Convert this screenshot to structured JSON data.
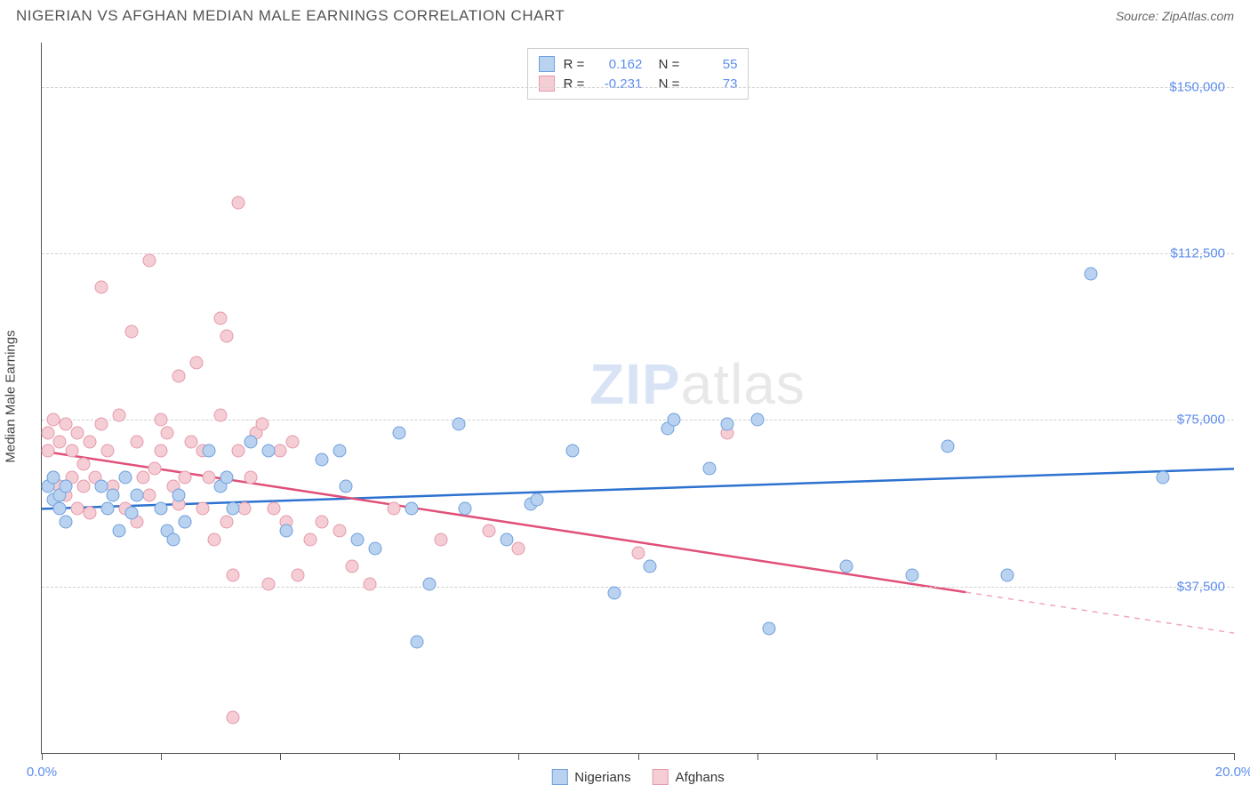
{
  "header": {
    "title": "NIGERIAN VS AFGHAN MEDIAN MALE EARNINGS CORRELATION CHART",
    "source": "Source: ZipAtlas.com"
  },
  "chart": {
    "type": "scatter-with-trend",
    "y_axis": {
      "title": "Median Male Earnings",
      "min": 0,
      "max": 160000,
      "ticks": [
        37500,
        75000,
        112500,
        150000
      ],
      "tick_labels": [
        "$37,500",
        "$75,000",
        "$112,500",
        "$150,000"
      ],
      "label_color": "#5b8def",
      "label_fontsize": 15
    },
    "x_axis": {
      "min": 0,
      "max": 20,
      "ticks": [
        0,
        2,
        4,
        6,
        8,
        10,
        12,
        14,
        16,
        18,
        20
      ],
      "end_labels": {
        "left": "0.0%",
        "right": "20.0%"
      },
      "label_color": "#5b8def",
      "label_fontsize": 15
    },
    "grid_color": "#d0d0d0",
    "background_color": "#ffffff",
    "series": [
      {
        "name": "Nigerians",
        "fill_color": "#b9d2f0",
        "stroke_color": "#6fa0de",
        "line_color": "#2d72d0",
        "r_value": "0.162",
        "n_value": "55",
        "trend": {
          "y_at_xmin": 55000,
          "y_at_xmax": 64000,
          "solid_until_x": 20
        },
        "points": [
          [
            0.1,
            60000
          ],
          [
            0.2,
            57000
          ],
          [
            0.2,
            62000
          ],
          [
            0.3,
            55000
          ],
          [
            0.3,
            58000
          ],
          [
            0.4,
            60000
          ],
          [
            0.4,
            52000
          ],
          [
            1.0,
            60000
          ],
          [
            1.1,
            55000
          ],
          [
            1.2,
            58000
          ],
          [
            1.3,
            50000
          ],
          [
            1.4,
            62000
          ],
          [
            1.5,
            54000
          ],
          [
            1.6,
            58000
          ],
          [
            2.0,
            55000
          ],
          [
            2.1,
            50000
          ],
          [
            2.2,
            48000
          ],
          [
            2.3,
            58000
          ],
          [
            2.4,
            52000
          ],
          [
            2.8,
            68000
          ],
          [
            3.0,
            60000
          ],
          [
            3.1,
            62000
          ],
          [
            3.2,
            55000
          ],
          [
            3.5,
            70000
          ],
          [
            3.8,
            68000
          ],
          [
            4.1,
            50000
          ],
          [
            4.7,
            66000
          ],
          [
            5.0,
            68000
          ],
          [
            5.1,
            60000
          ],
          [
            5.3,
            48000
          ],
          [
            5.6,
            46000
          ],
          [
            6.0,
            72000
          ],
          [
            6.2,
            55000
          ],
          [
            6.3,
            25000
          ],
          [
            6.5,
            38000
          ],
          [
            7.0,
            74000
          ],
          [
            7.1,
            55000
          ],
          [
            7.8,
            48000
          ],
          [
            8.2,
            56000
          ],
          [
            8.3,
            57000
          ],
          [
            8.9,
            68000
          ],
          [
            9.6,
            36000
          ],
          [
            10.2,
            42000
          ],
          [
            10.5,
            73000
          ],
          [
            10.6,
            75000
          ],
          [
            11.2,
            64000
          ],
          [
            11.5,
            74000
          ],
          [
            12.0,
            75000
          ],
          [
            12.2,
            28000
          ],
          [
            13.5,
            42000
          ],
          [
            14.6,
            40000
          ],
          [
            15.2,
            69000
          ],
          [
            16.2,
            40000
          ],
          [
            17.6,
            108000
          ],
          [
            18.8,
            62000
          ]
        ]
      },
      {
        "name": "Afghans",
        "fill_color": "#f5cdd5",
        "stroke_color": "#e59aab",
        "line_color": "#e15078",
        "r_value": "-0.231",
        "n_value": "73",
        "trend": {
          "y_at_xmin": 68000,
          "y_at_xmax": 27000,
          "solid_until_x": 15.5
        },
        "points": [
          [
            0.1,
            72000
          ],
          [
            0.1,
            68000
          ],
          [
            0.2,
            62000
          ],
          [
            0.2,
            75000
          ],
          [
            0.3,
            70000
          ],
          [
            0.3,
            60000
          ],
          [
            0.4,
            74000
          ],
          [
            0.4,
            58000
          ],
          [
            0.5,
            62000
          ],
          [
            0.5,
            68000
          ],
          [
            0.6,
            55000
          ],
          [
            0.6,
            72000
          ],
          [
            0.7,
            60000
          ],
          [
            0.7,
            65000
          ],
          [
            0.8,
            70000
          ],
          [
            0.8,
            54000
          ],
          [
            0.9,
            62000
          ],
          [
            1.0,
            74000
          ],
          [
            1.0,
            105000
          ],
          [
            1.1,
            68000
          ],
          [
            1.2,
            60000
          ],
          [
            1.3,
            76000
          ],
          [
            1.4,
            55000
          ],
          [
            1.5,
            95000
          ],
          [
            1.6,
            70000
          ],
          [
            1.6,
            52000
          ],
          [
            1.7,
            62000
          ],
          [
            1.8,
            111000
          ],
          [
            1.8,
            58000
          ],
          [
            1.9,
            64000
          ],
          [
            2.0,
            75000
          ],
          [
            2.0,
            68000
          ],
          [
            2.1,
            72000
          ],
          [
            2.2,
            60000
          ],
          [
            2.3,
            56000
          ],
          [
            2.3,
            85000
          ],
          [
            2.4,
            62000
          ],
          [
            2.4,
            52000
          ],
          [
            2.5,
            70000
          ],
          [
            2.6,
            88000
          ],
          [
            2.7,
            55000
          ],
          [
            2.7,
            68000
          ],
          [
            2.8,
            62000
          ],
          [
            2.9,
            48000
          ],
          [
            3.0,
            98000
          ],
          [
            3.0,
            76000
          ],
          [
            3.1,
            94000
          ],
          [
            3.1,
            52000
          ],
          [
            3.2,
            40000
          ],
          [
            3.3,
            124000
          ],
          [
            3.3,
            68000
          ],
          [
            3.4,
            55000
          ],
          [
            3.5,
            62000
          ],
          [
            3.6,
            72000
          ],
          [
            3.7,
            74000
          ],
          [
            3.8,
            38000
          ],
          [
            3.9,
            55000
          ],
          [
            4.0,
            68000
          ],
          [
            4.1,
            52000
          ],
          [
            4.2,
            70000
          ],
          [
            4.3,
            40000
          ],
          [
            4.5,
            48000
          ],
          [
            4.7,
            52000
          ],
          [
            3.2,
            8000
          ],
          [
            5.0,
            50000
          ],
          [
            5.2,
            42000
          ],
          [
            5.5,
            38000
          ],
          [
            5.9,
            55000
          ],
          [
            6.7,
            48000
          ],
          [
            7.5,
            50000
          ],
          [
            8.0,
            46000
          ],
          [
            10.0,
            45000
          ],
          [
            11.5,
            72000
          ]
        ]
      }
    ],
    "watermark": {
      "part1": "ZIP",
      "part2": "atlas"
    },
    "legend": {
      "label1": "Nigerians",
      "label2": "Afghans"
    }
  }
}
